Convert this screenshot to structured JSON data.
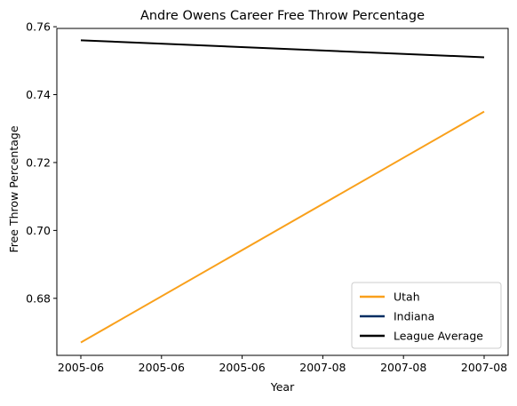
{
  "chart_data": {
    "type": "line",
    "title": "Andre Owens Career Free Throw Percentage",
    "xlabel": "Year",
    "ylabel": "Free Throw Percentage",
    "x_tick_labels": [
      "2005-06",
      "2005-06",
      "2005-06",
      "2007-08",
      "2007-08",
      "2007-08"
    ],
    "x": [
      "2005-06",
      "2007-08"
    ],
    "ylim": [
      0.6632,
      0.7595
    ],
    "y_ticks": [
      0.68,
      0.7,
      0.72,
      0.74,
      0.76
    ],
    "y_tick_labels": [
      "0.68",
      "0.70",
      "0.72",
      "0.74",
      "0.76"
    ],
    "grid": false,
    "legend_position": "bottom-right",
    "series": [
      {
        "name": "Utah",
        "color": "#F9A01B",
        "values": [
          0.667,
          0.735
        ]
      },
      {
        "name": "Indiana",
        "color": "#002D62",
        "values": [
          null,
          null
        ]
      },
      {
        "name": "League Average",
        "color": "#000000",
        "values": [
          0.756,
          0.751
        ]
      }
    ]
  }
}
